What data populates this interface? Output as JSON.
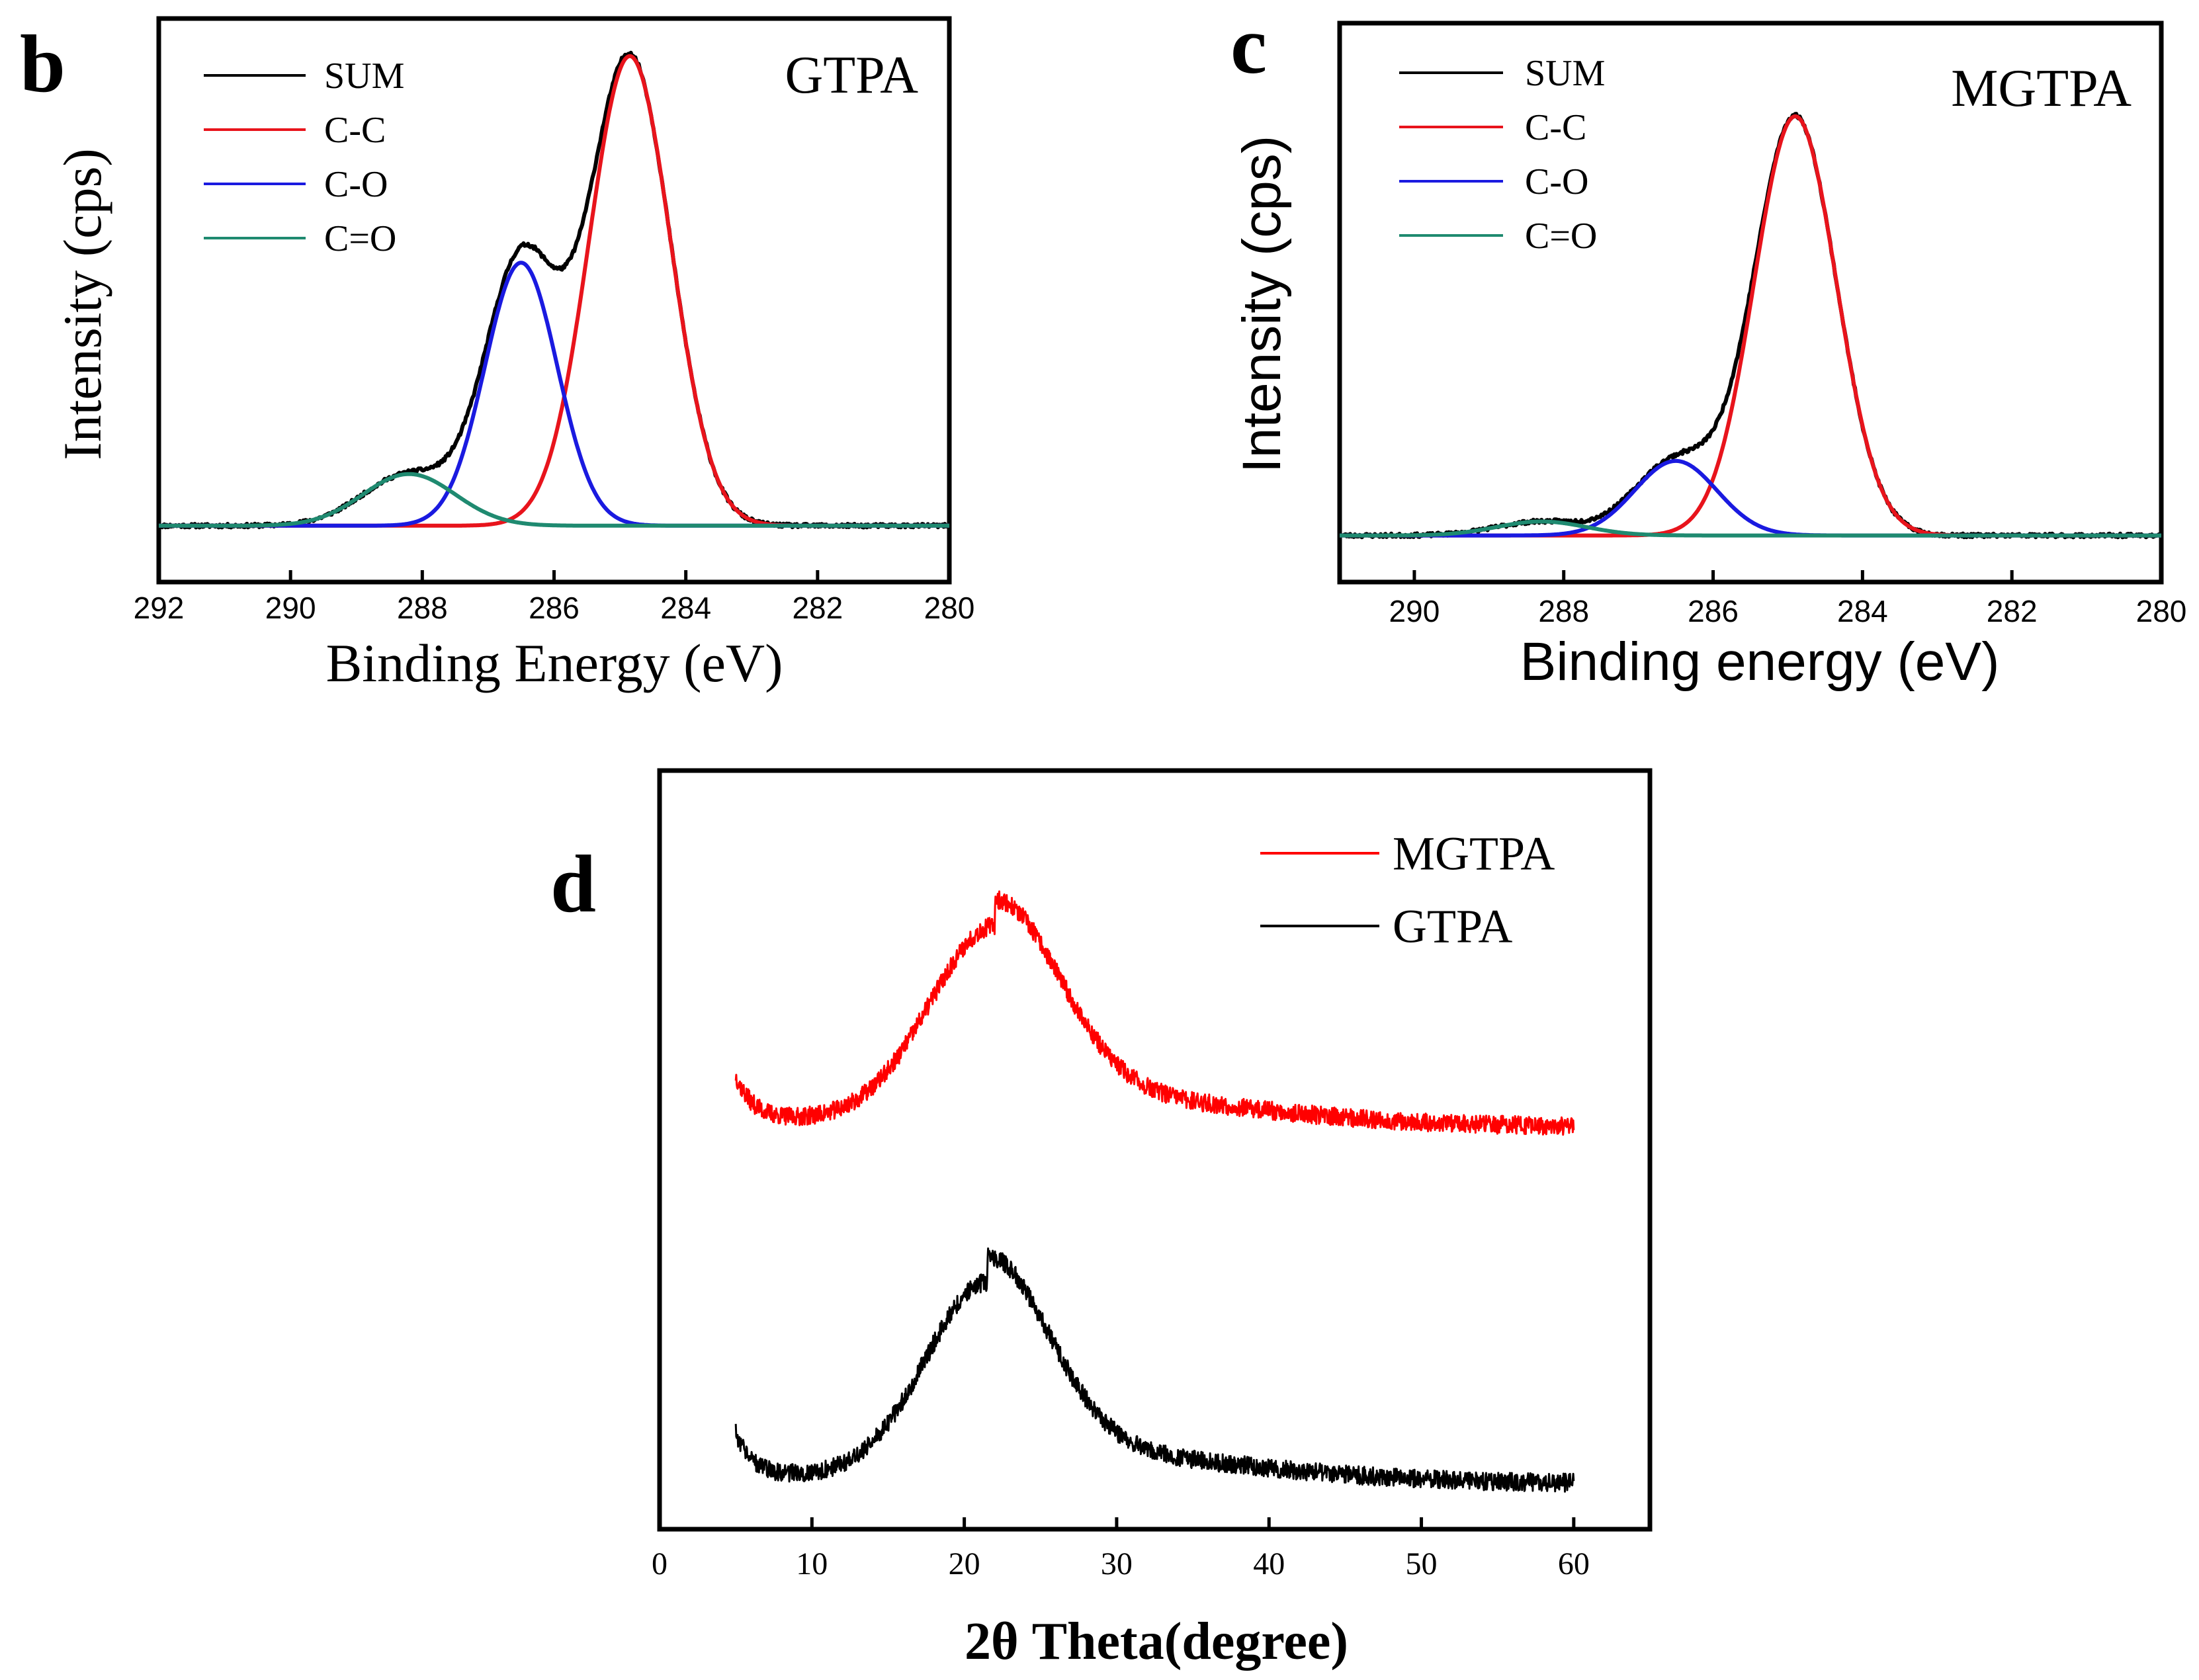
{
  "figure": {
    "panels": [
      "b",
      "c",
      "d"
    ]
  },
  "chart_data": [
    {
      "type": "line",
      "panel_label": "b",
      "title": "GTPA",
      "xlabel": "Binding Energy (eV)",
      "ylabel": "Intensity (cps)",
      "xlim": [
        292,
        280
      ],
      "ylim": [
        0,
        1.2
      ],
      "x_ticks": [
        292,
        290,
        288,
        286,
        284,
        282,
        280
      ],
      "x_tick_labels": [
        "292",
        "290",
        "288",
        "286",
        "284",
        "282",
        "280"
      ],
      "legend_position": "top-left",
      "baseline": 0.12,
      "series": [
        {
          "name": "SUM",
          "color": "#000000",
          "components": [
            0,
            1,
            2
          ],
          "noise": 0.004
        },
        {
          "name": "C-C",
          "color": "#e8141c",
          "peak": {
            "center": 284.85,
            "height": 1.0,
            "sigma": 0.62
          }
        },
        {
          "name": "C-O",
          "color": "#1a1ae0",
          "peak": {
            "center": 286.5,
            "height": 0.56,
            "sigma": 0.55
          }
        },
        {
          "name": "C=O",
          "color": "#1f8a70",
          "peak": {
            "center": 288.2,
            "height": 0.11,
            "sigma": 0.7
          }
        }
      ]
    },
    {
      "type": "line",
      "panel_label": "c",
      "title": "MGTPA",
      "xlabel": "Binding energy (eV)",
      "ylabel": "Intensity (cps)",
      "xlim": [
        291,
        280
      ],
      "ylim": [
        0,
        1.2
      ],
      "x_ticks": [
        290,
        288,
        286,
        284,
        282,
        280
      ],
      "x_tick_labels": [
        "290",
        "288",
        "286",
        "284",
        "282",
        "280"
      ],
      "legend_position": "top-left",
      "baseline": 0.1,
      "series": [
        {
          "name": "SUM",
          "color": "#000000",
          "components": [
            0,
            1,
            2
          ],
          "noise": 0.004
        },
        {
          "name": "C-C",
          "color": "#e8141c",
          "peak": {
            "center": 284.9,
            "height": 0.9,
            "sigma": 0.55
          }
        },
        {
          "name": "C-O",
          "color": "#1a1ae0",
          "peak": {
            "center": 286.5,
            "height": 0.16,
            "sigma": 0.55
          }
        },
        {
          "name": "C=O",
          "color": "#1f8a70",
          "peak": {
            "center": 288.3,
            "height": 0.03,
            "sigma": 0.6
          }
        }
      ]
    },
    {
      "type": "line",
      "panel_label": "d",
      "title": "",
      "xlabel": "2θ Theta(degree)",
      "ylabel": "",
      "xlim": [
        0,
        65
      ],
      "ylim": [
        0,
        1
      ],
      "x_ticks": [
        0,
        10,
        20,
        30,
        40,
        50,
        60
      ],
      "x_tick_labels": [
        "0",
        "10",
        "20",
        "30",
        "40",
        "50",
        "60"
      ],
      "legend_position": "top-right",
      "series": [
        {
          "name": "MGTPA",
          "color": "#ff0000",
          "x_range": [
            5,
            60
          ],
          "base": 0.53,
          "peak_center": 22,
          "peak_height": 0.25,
          "peak_sigma": 4.2,
          "noise": 0.012
        },
        {
          "name": "GTPA",
          "color": "#000000",
          "x_range": [
            5,
            60
          ],
          "base": 0.06,
          "peak_center": 21.5,
          "peak_height": 0.25,
          "peak_sigma": 4.0,
          "noise": 0.012
        }
      ]
    }
  ]
}
